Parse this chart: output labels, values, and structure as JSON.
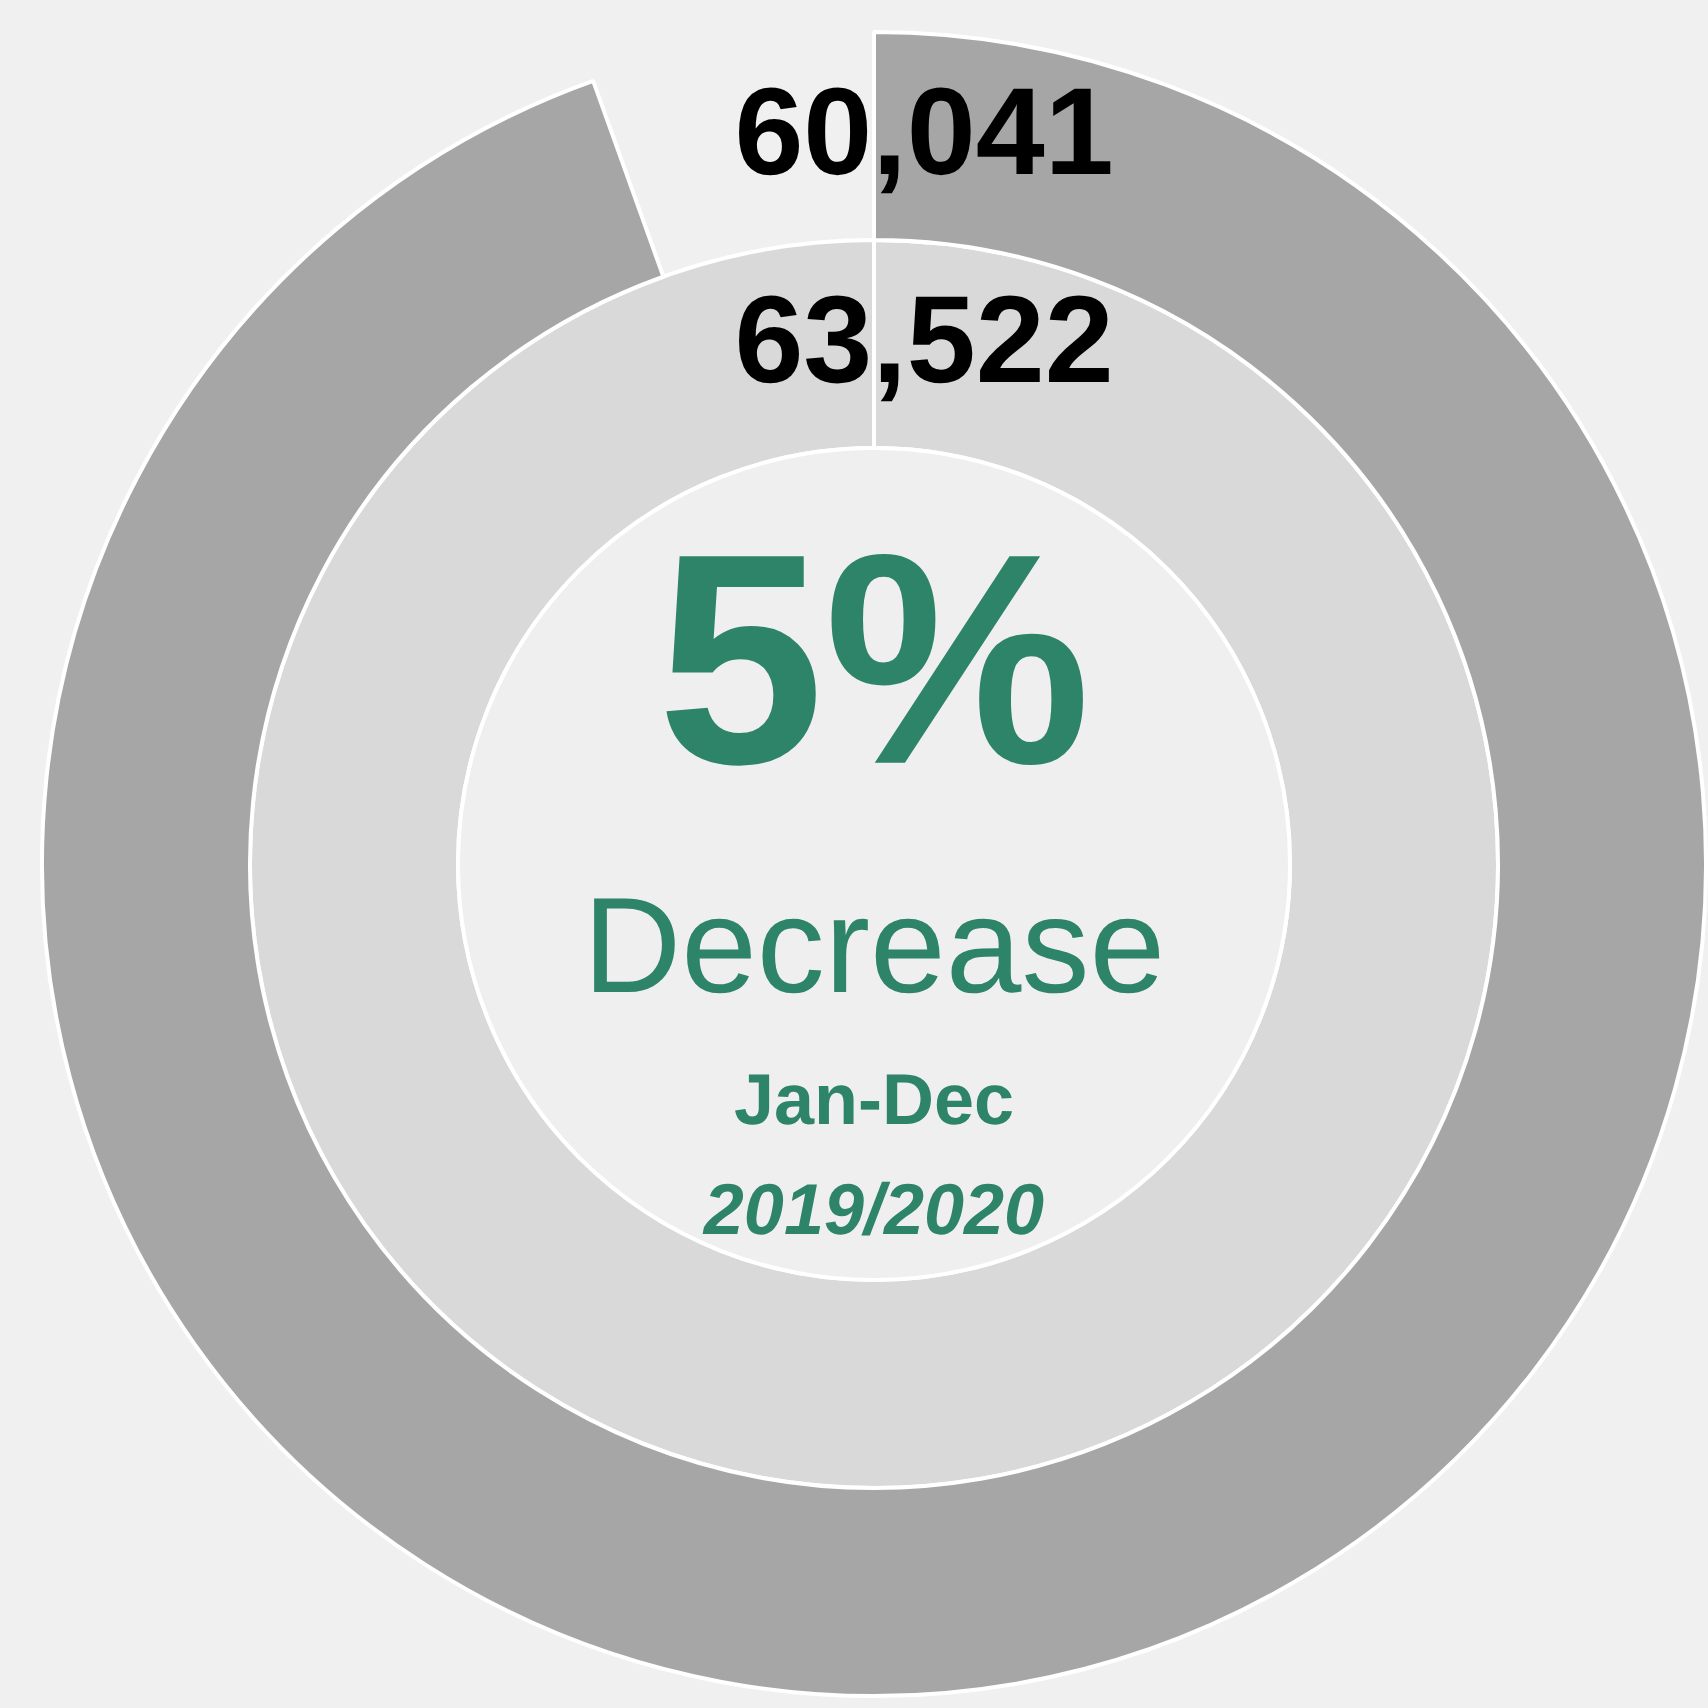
{
  "chart_data": {
    "type": "donut",
    "categories": [
      null
    ],
    "series": [
      {
        "color": "#d9d9d9",
        "values": [
          63522
        ],
        "value_labels": [
          "63,522"
        ]
      },
      {
        "color": "#a6a6a6",
        "values": [
          60041
        ],
        "value_labels": [
          "60,041"
        ]
      }
    ],
    "legend": false,
    "annotations": [
      "5%",
      "Decrease",
      "Jan-Dec",
      "2019/2020"
    ]
  }
}
